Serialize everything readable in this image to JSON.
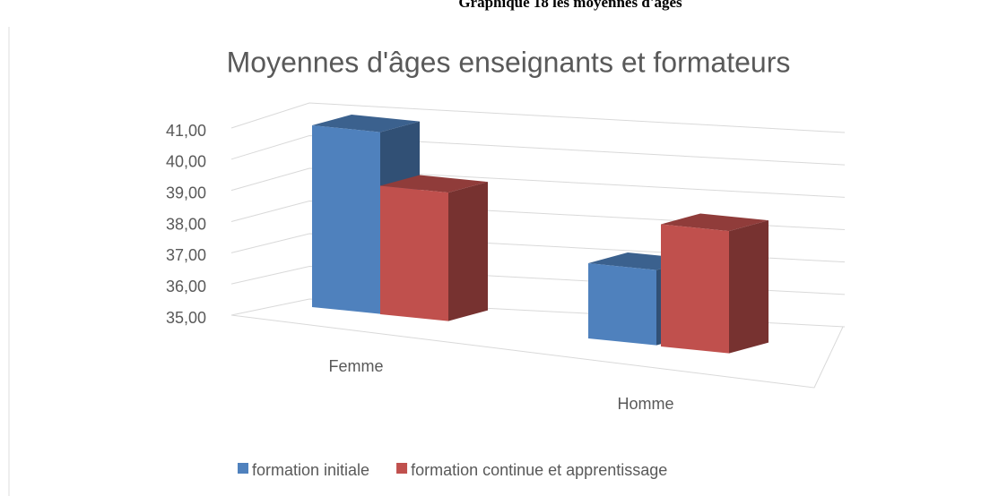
{
  "caption": "Graphique 18 les moyennes d'âges",
  "chart_data": {
    "type": "bar3d",
    "title": "Moyennes d'âges enseignants et formateurs",
    "categories": [
      "Femme",
      "Homme"
    ],
    "series": [
      {
        "name": "formation initiale",
        "color": "#4f81bd",
        "values": [
          40.8,
          37.4
        ]
      },
      {
        "name": "formation continue et apprentissage",
        "color": "#c0504d",
        "values": [
          39.1,
          38.9
        ]
      }
    ],
    "ylim": [
      35,
      41
    ],
    "yticks": [
      {
        "value": 35,
        "label": "35,00"
      },
      {
        "value": 36,
        "label": "36,00"
      },
      {
        "value": 37,
        "label": "37,00"
      },
      {
        "value": 38,
        "label": "38,00"
      },
      {
        "value": 39,
        "label": "39,00"
      },
      {
        "value": 40,
        "label": "40,00"
      },
      {
        "value": 41,
        "label": "41,00"
      }
    ],
    "grid": true,
    "legend": "bottom"
  }
}
